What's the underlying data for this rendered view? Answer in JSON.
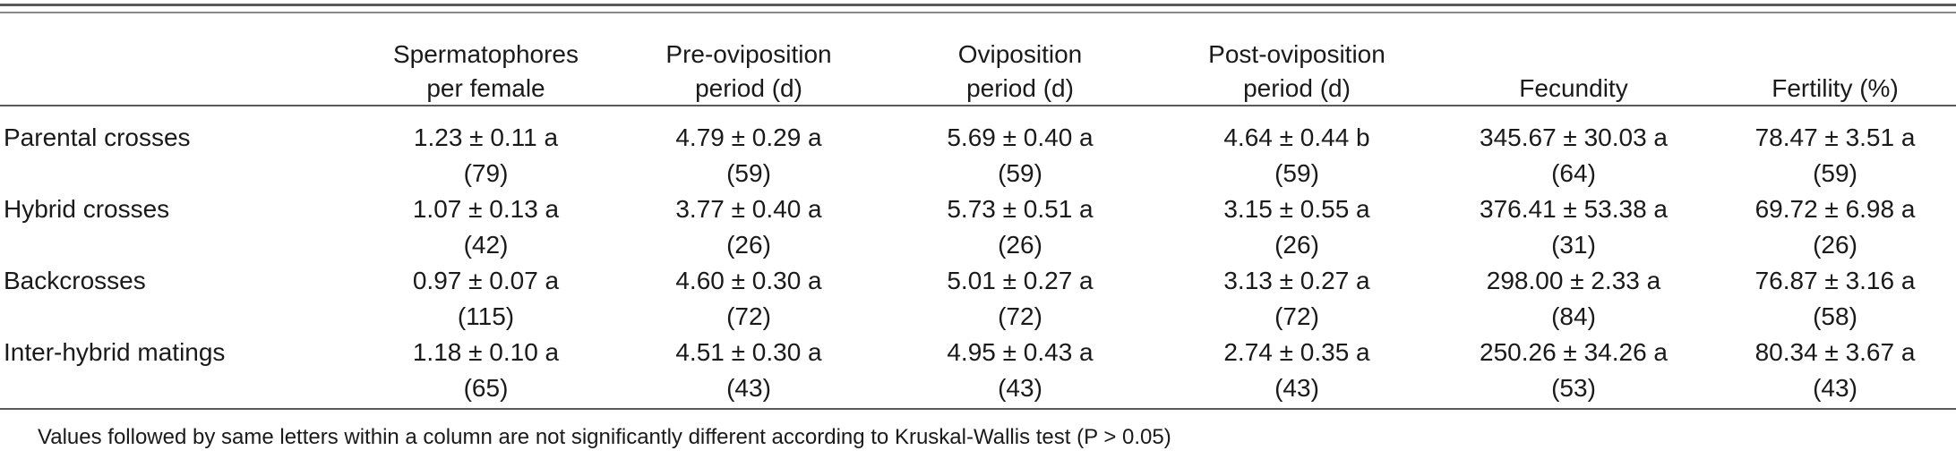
{
  "table": {
    "columns": [
      "",
      "Spermatophores per female",
      "Pre-oviposition period (d)",
      "Oviposition period (d)",
      "Post-oviposition period (d)",
      "Fecundity",
      "Fertility (%)"
    ],
    "header_lines": [
      [
        ""
      ],
      [
        "Spermatophores",
        "per female"
      ],
      [
        "Pre-oviposition",
        "period (d)"
      ],
      [
        "Oviposition",
        "period (d)"
      ],
      [
        "Post-oviposition",
        "period (d)"
      ],
      [
        "Fecundity"
      ],
      [
        "Fertility (%)"
      ]
    ],
    "rows": [
      {
        "label": "Parental crosses",
        "cells": [
          {
            "value": "1.23 ± 0.11 a",
            "n": "(79)"
          },
          {
            "value": "4.79 ± 0.29 a",
            "n": "(59)"
          },
          {
            "value": "5.69 ± 0.40 a",
            "n": "(59)"
          },
          {
            "value": "4.64 ± 0.44 b",
            "n": "(59)"
          },
          {
            "value": "345.67 ± 30.03 a",
            "n": "(64)"
          },
          {
            "value": "78.47 ± 3.51 a",
            "n": "(59)"
          }
        ]
      },
      {
        "label": "Hybrid crosses",
        "cells": [
          {
            "value": "1.07 ± 0.13 a",
            "n": "(42)"
          },
          {
            "value": "3.77 ± 0.40 a",
            "n": "(26)"
          },
          {
            "value": "5.73 ± 0.51 a",
            "n": "(26)"
          },
          {
            "value": "3.15 ± 0.55 a",
            "n": "(26)"
          },
          {
            "value": "376.41 ± 53.38 a",
            "n": "(31)"
          },
          {
            "value": "69.72 ± 6.98 a",
            "n": "(26)"
          }
        ]
      },
      {
        "label": "Backcrosses",
        "cells": [
          {
            "value": "0.97 ± 0.07 a",
            "n": "(115)"
          },
          {
            "value": "4.60 ± 0.30 a",
            "n": "(72)"
          },
          {
            "value": "5.01 ± 0.27 a",
            "n": "(72)"
          },
          {
            "value": "3.13 ± 0.27 a",
            "n": "(72)"
          },
          {
            "value": "298.00 ± 2.33 a",
            "n": "(84)"
          },
          {
            "value": "76.87 ± 3.16 a",
            "n": "(58)"
          }
        ]
      },
      {
        "label": "Inter-hybrid matings",
        "cells": [
          {
            "value": "1.18 ± 0.10 a",
            "n": "(65)"
          },
          {
            "value": "4.51 ± 0.30 a",
            "n": "(43)"
          },
          {
            "value": "4.95 ± 0.43 a",
            "n": "(43)"
          },
          {
            "value": "2.74 ± 0.35 a",
            "n": "(43)"
          },
          {
            "value": "250.26 ± 34.26 a",
            "n": "(53)"
          },
          {
            "value": "80.34 ± 3.67 a",
            "n": "(43)"
          }
        ]
      }
    ]
  },
  "footnote": "Values followed by same letters within a column are not significantly different according to Kruskal-Wallis test (P > 0.05)",
  "colors": {
    "text": "#1a1a1a",
    "rule": "#5a5a5a"
  }
}
